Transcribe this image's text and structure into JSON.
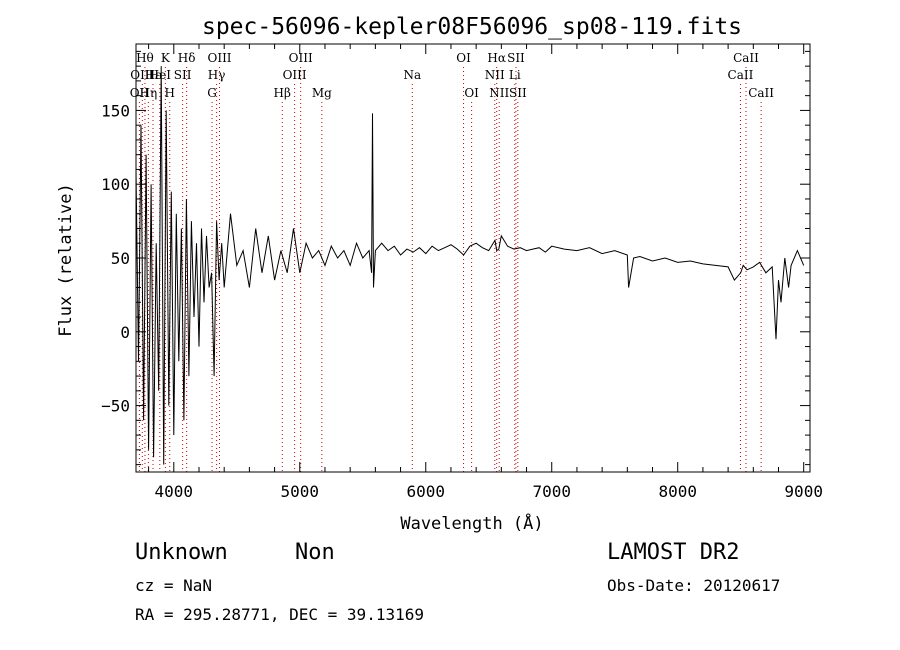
{
  "info": {
    "class_label": "Unknown",
    "subclass_label": "Non",
    "survey": "LAMOST DR2",
    "cz": "cz = NaN",
    "obs_date": "Obs-Date: 20120617",
    "coords": "RA = 295.28771, DEC =  39.13169"
  },
  "colors": {
    "spectrum": "#000000",
    "line_marker": "#cc0000",
    "axes": "#000000"
  },
  "chart_data": {
    "type": "line",
    "title": "spec-56096-kepler08F56096_sp08-119.fits",
    "xlabel": "Wavelength (Å)",
    "ylabel": "Flux (relative)",
    "xlim": [
      3700,
      9050
    ],
    "ylim": [
      -95,
      195
    ],
    "xticks": [
      4000,
      5000,
      6000,
      7000,
      8000,
      9000
    ],
    "yticks": [
      -50,
      0,
      50,
      100,
      150
    ],
    "xtick_labels": [
      "4000",
      "5000",
      "6000",
      "7000",
      "8000",
      "9000"
    ],
    "ytick_labels": [
      "−50",
      "0",
      "50",
      "100",
      "150"
    ],
    "series": [
      {
        "x": [
          3700,
          3720,
          3740,
          3760,
          3780,
          3800,
          3820,
          3840,
          3860,
          3880,
          3900,
          3920,
          3940,
          3960,
          3980,
          4000,
          4020,
          4040,
          4060,
          4080,
          4100,
          4120,
          4140,
          4160,
          4180,
          4200,
          4220,
          4240,
          4260,
          4280,
          4300,
          4320,
          4340,
          4360,
          4380,
          4400,
          4450,
          4500,
          4550,
          4600,
          4650,
          4700,
          4750,
          4800,
          4850,
          4900,
          4950,
          5000,
          5050,
          5100,
          5150,
          5200,
          5250,
          5300,
          5350,
          5400,
          5450,
          5500,
          5550,
          5570,
          5577,
          5585,
          5600,
          5650,
          5700,
          5750,
          5800,
          5850,
          5900,
          5950,
          6000,
          6050,
          6100,
          6150,
          6200,
          6250,
          6300,
          6350,
          6400,
          6450,
          6500,
          6550,
          6563,
          6580,
          6600,
          6650,
          6700,
          6750,
          6800,
          6850,
          6900,
          6950,
          7000,
          7100,
          7200,
          7300,
          7400,
          7500,
          7600,
          7610,
          7650,
          7700,
          7800,
          7900,
          8000,
          8100,
          8200,
          8300,
          8400,
          8450,
          8500,
          8520,
          8550,
          8600,
          8650,
          8700,
          8750,
          8780,
          8800,
          8820,
          8850,
          8880,
          8900,
          8950,
          9000
        ],
        "y": [
          110,
          -20,
          140,
          -60,
          120,
          -80,
          100,
          -85,
          60,
          -40,
          180,
          -90,
          150,
          -50,
          95,
          -70,
          80,
          -20,
          70,
          -60,
          90,
          -30,
          75,
          10,
          60,
          -10,
          70,
          20,
          65,
          30,
          40,
          -30,
          75,
          35,
          60,
          30,
          80,
          45,
          55,
          30,
          70,
          40,
          65,
          35,
          55,
          40,
          70,
          40,
          60,
          50,
          55,
          45,
          58,
          50,
          55,
          45,
          60,
          50,
          55,
          40,
          148,
          30,
          55,
          60,
          55,
          58,
          52,
          56,
          54,
          57,
          53,
          58,
          55,
          57,
          59,
          56,
          52,
          58,
          60,
          57,
          55,
          62,
          55,
          56,
          65,
          58,
          56,
          57,
          55,
          56,
          57,
          54,
          58,
          56,
          55,
          57,
          53,
          55,
          52,
          30,
          50,
          51,
          48,
          50,
          47,
          48,
          46,
          45,
          44,
          35,
          40,
          45,
          42,
          44,
          47,
          40,
          44,
          -5,
          35,
          20,
          50,
          30,
          45,
          55,
          45
        ]
      }
    ],
    "lines": [
      {
        "wl": 3727,
        "label": "OII",
        "row": 3
      },
      {
        "wl": 3750,
        "label": "OIII",
        "row": 2
      },
      {
        "wl": 3771,
        "label": "Hθ",
        "row": 1
      },
      {
        "wl": 3798,
        "label": "Hη",
        "row": 3
      },
      {
        "wl": 3835,
        "label": "Hε",
        "row": 2
      },
      {
        "wl": 3889,
        "label": "HeI",
        "row": 2
      },
      {
        "wl": 3933,
        "label": "K",
        "row": 1
      },
      {
        "wl": 3968,
        "label": "H",
        "row": 3
      },
      {
        "wl": 4070,
        "label": "SII",
        "row": 2
      },
      {
        "wl": 4102,
        "label": "Hδ",
        "row": 1
      },
      {
        "wl": 4304,
        "label": "G",
        "row": 3
      },
      {
        "wl": 4340,
        "label": "Hγ",
        "row": 2
      },
      {
        "wl": 4363,
        "label": "OIII",
        "row": 1
      },
      {
        "wl": 4861,
        "label": "Hβ",
        "row": 3
      },
      {
        "wl": 4959,
        "label": "OIII",
        "row": 2
      },
      {
        "wl": 5007,
        "label": "OIII",
        "row": 1
      },
      {
        "wl": 5175,
        "label": "Mg",
        "row": 3
      },
      {
        "wl": 5893,
        "label": "Na",
        "row": 2
      },
      {
        "wl": 6300,
        "label": "OI",
        "row": 1
      },
      {
        "wl": 6364,
        "label": "OI",
        "row": 3
      },
      {
        "wl": 6548,
        "label": "NII",
        "row": 2
      },
      {
        "wl": 6563,
        "label": "Hα",
        "row": 1
      },
      {
        "wl": 6583,
        "label": "NII",
        "row": 3
      },
      {
        "wl": 6707,
        "label": "Li",
        "row": 2
      },
      {
        "wl": 6716,
        "label": "SII",
        "row": 1
      },
      {
        "wl": 6731,
        "label": "SII",
        "row": 3
      },
      {
        "wl": 8498,
        "label": "CaII",
        "row": 2
      },
      {
        "wl": 8542,
        "label": "CaII",
        "row": 1
      },
      {
        "wl": 8662,
        "label": "CaII",
        "row": 3
      }
    ]
  }
}
